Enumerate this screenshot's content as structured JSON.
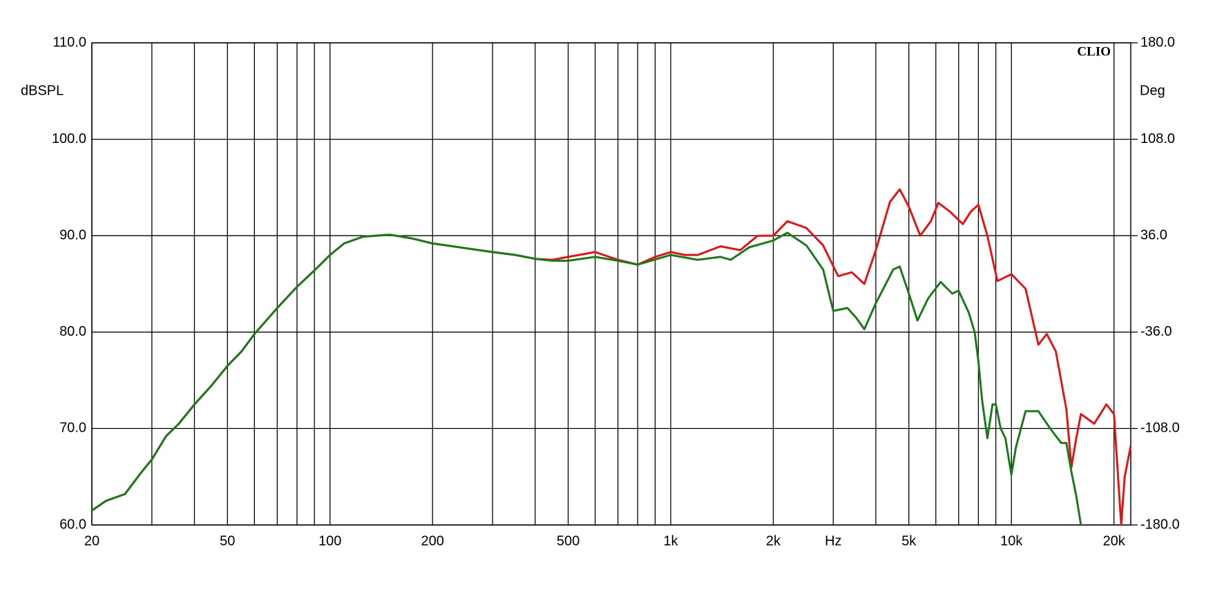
{
  "chart_data": {
    "type": "line",
    "brand": "CLIO",
    "ylabel": "dBSPL",
    "y2label": "Deg",
    "xscale": "log",
    "xlim": [
      20,
      22400
    ],
    "ylim": [
      60,
      110
    ],
    "y2lim": [
      -180,
      180
    ],
    "xticks": [
      20,
      50,
      100,
      200,
      500,
      {
        "value": 1000,
        "label": "1k"
      },
      {
        "value": 2000,
        "label": "2k"
      },
      {
        "value": 3000,
        "label": "Hz"
      },
      {
        "value": 5000,
        "label": "5k"
      },
      {
        "value": 10000,
        "label": "10k"
      },
      {
        "value": 20000,
        "label": "20k"
      }
    ],
    "xminor": [
      30,
      40,
      60,
      70,
      80,
      90,
      300,
      400,
      600,
      700,
      800,
      900,
      4000,
      6000,
      7000,
      8000,
      9000
    ],
    "yticks": [
      {
        "value": 60,
        "label": "60.0"
      },
      {
        "value": 70,
        "label": "70.0"
      },
      {
        "value": 80,
        "label": "80.0"
      },
      {
        "value": 90,
        "label": "90.0"
      },
      {
        "value": 100,
        "label": "100.0"
      },
      {
        "value": 110,
        "label": "110.0"
      }
    ],
    "y2ticks": [
      {
        "value": -180,
        "label": "-180.0"
      },
      {
        "value": -108,
        "label": "-108.0"
      },
      {
        "value": -36,
        "label": "-36.0"
      },
      {
        "value": 36,
        "label": "36.0"
      },
      {
        "value": 108,
        "label": "108.0"
      },
      {
        "value": 180,
        "label": "180.0"
      }
    ],
    "grid": true,
    "series": [
      {
        "color": "#e01515",
        "x": [
          20,
          22,
          25,
          28,
          30,
          33,
          36,
          40,
          45,
          50,
          55,
          60,
          70,
          80,
          90,
          100,
          110,
          125,
          150,
          175,
          200,
          250,
          300,
          350,
          400,
          450,
          500,
          600,
          700,
          800,
          900,
          1000,
          1100,
          1200,
          1400,
          1600,
          1800,
          2000,
          2200,
          2500,
          2800,
          3100,
          3400,
          3700,
          4000,
          4400,
          4700,
          5000,
          5400,
          5800,
          6100,
          6600,
          7200,
          7600,
          8000,
          8500,
          9100,
          10000,
          11000,
          12000,
          12700,
          13500,
          14500,
          15000,
          15500,
          16000,
          17500,
          19000,
          20000,
          21000,
          21500,
          22400
        ],
        "values": [
          61.5,
          62.5,
          63.2,
          65.5,
          66.8,
          69.2,
          70.5,
          72.5,
          74.5,
          76.5,
          78.0,
          79.8,
          82.5,
          84.7,
          86.4,
          88.0,
          89.2,
          89.9,
          90.1,
          89.7,
          89.2,
          88.7,
          88.3,
          88.0,
          87.6,
          87.5,
          87.8,
          88.3,
          87.5,
          87.0,
          87.8,
          88.3,
          88.0,
          88.0,
          88.9,
          88.5,
          90.0,
          90.0,
          91.5,
          90.8,
          89.0,
          85.8,
          86.2,
          85.0,
          88.5,
          93.5,
          94.8,
          93.0,
          90.0,
          91.5,
          93.4,
          92.5,
          91.2,
          92.5,
          93.2,
          90.0,
          85.3,
          86.0,
          84.5,
          78.7,
          79.8,
          78.0,
          72.0,
          66.0,
          69.0,
          71.5,
          70.5,
          72.5,
          71.5,
          60.0,
          65.0,
          68.2
        ]
      },
      {
        "color": "#1a7a1a",
        "x": [
          20,
          22,
          25,
          28,
          30,
          33,
          36,
          40,
          45,
          50,
          55,
          60,
          70,
          80,
          90,
          100,
          110,
          125,
          150,
          175,
          200,
          250,
          300,
          350,
          400,
          450,
          500,
          600,
          700,
          800,
          1000,
          1200,
          1400,
          1500,
          1700,
          2000,
          2200,
          2500,
          2800,
          3000,
          3300,
          3500,
          3700,
          4000,
          4500,
          4700,
          5000,
          5300,
          5700,
          6200,
          6700,
          7000,
          7500,
          7800,
          8000,
          8200,
          8500,
          8800,
          9000,
          9300,
          9600,
          10000,
          10300,
          11000,
          12000,
          13000,
          14000,
          14500,
          15000,
          15500,
          16000
        ],
        "values": [
          61.5,
          62.5,
          63.2,
          65.5,
          66.8,
          69.2,
          70.5,
          72.5,
          74.5,
          76.5,
          78.0,
          79.8,
          82.5,
          84.7,
          86.4,
          88.0,
          89.2,
          89.9,
          90.1,
          89.7,
          89.2,
          88.7,
          88.3,
          88.0,
          87.6,
          87.4,
          87.4,
          87.8,
          87.4,
          87.0,
          88.0,
          87.5,
          87.8,
          87.5,
          88.8,
          89.5,
          90.3,
          89.0,
          86.5,
          82.2,
          82.5,
          81.5,
          80.3,
          83.0,
          86.5,
          86.8,
          84.0,
          81.2,
          83.5,
          85.2,
          84.0,
          84.3,
          82.0,
          80.0,
          77.0,
          73.0,
          69.0,
          72.5,
          72.5,
          70.0,
          69.0,
          65.2,
          68.0,
          71.8,
          71.8,
          70.0,
          68.5,
          68.5,
          65.5,
          63.0,
          60.0
        ]
      }
    ]
  }
}
